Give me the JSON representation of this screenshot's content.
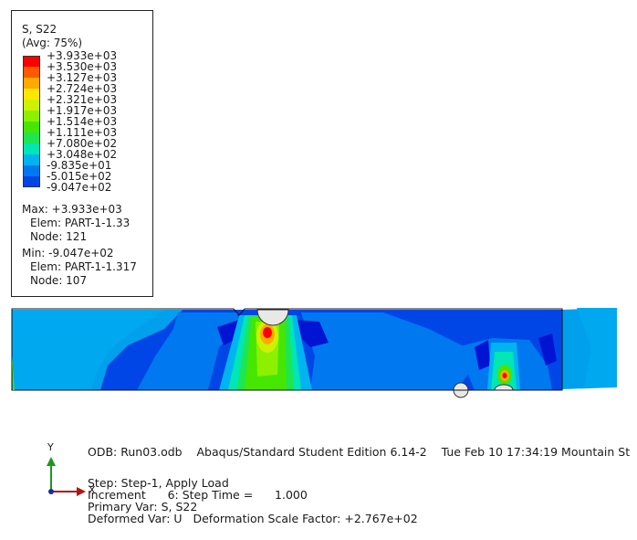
{
  "legend": {
    "variable": "S, S22",
    "averaging": "(Avg: 75%)",
    "values": [
      "+3.933e+03",
      "+3.530e+03",
      "+3.127e+03",
      "+2.724e+03",
      "+2.321e+03",
      "+1.917e+03",
      "+1.514e+03",
      "+1.111e+03",
      "+7.080e+02",
      "+3.048e+02",
      "-9.835e+01",
      "-5.015e+02",
      "-9.047e+02"
    ],
    "colors": [
      "#ff0000",
      "#ff5a00",
      "#ffaa00",
      "#ffe600",
      "#cdf200",
      "#8cf000",
      "#46e600",
      "#1ee650",
      "#00e6b4",
      "#00b4f0",
      "#0078f0",
      "#0046e6",
      "#0014d2"
    ],
    "max": {
      "label": "Max: +3.933e+03",
      "elem": "Elem: PART-1-1.33",
      "node": "Node: 121"
    },
    "min": {
      "label": "Min: -9.047e+02",
      "elem": "Elem: PART-1-1.317",
      "node": "Node: 107"
    }
  },
  "status": {
    "odb_line": "ODB: Run03.odb    Abaqus/Standard Student Edition 6.14-2    Tue Feb 10 17:34:19 Mountain St",
    "step_line": "Step: Step-1, Apply Load",
    "increment_line": "Increment      6: Step Time =      1.000",
    "primary_line": "Primary Var: S, S22",
    "deformed_line": "Deformed Var: U   Deformation Scale Factor: +2.767e+02"
  },
  "triad": {
    "y_label": "Y",
    "x_label": "X",
    "y_color": "#1a9a1a",
    "x_color": "#b01414",
    "z_color": "#1a2aa0"
  }
}
